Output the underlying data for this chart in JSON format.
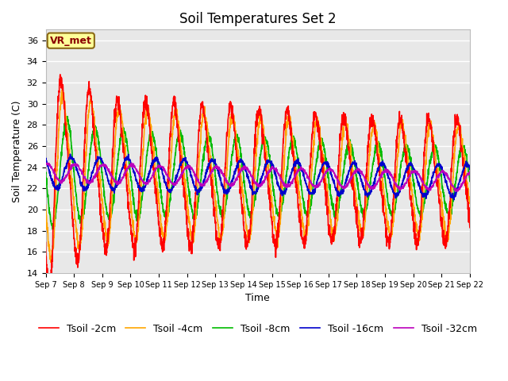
{
  "title": "Soil Temperatures Set 2",
  "xlabel": "Time",
  "ylabel": "Soil Temperature (C)",
  "ylim": [
    14,
    37
  ],
  "yticks": [
    14,
    16,
    18,
    20,
    22,
    24,
    26,
    28,
    30,
    32,
    34,
    36
  ],
  "xtick_labels": [
    "Sep 7",
    "Sep 8",
    "Sep 9",
    "Sep 10",
    "Sep 11",
    "Sep 12",
    "Sep 13",
    "Sep 14",
    "Sep 15",
    "Sep 16",
    "Sep 17",
    "Sep 18",
    "Sep 19",
    "Sep 20",
    "Sep 21",
    "Sep 22"
  ],
  "series": {
    "Tsoil -2cm": {
      "color": "#FF0000",
      "lw": 1.2
    },
    "Tsoil -4cm": {
      "color": "#FFA500",
      "lw": 1.2
    },
    "Tsoil -8cm": {
      "color": "#00BB00",
      "lw": 1.2
    },
    "Tsoil -16cm": {
      "color": "#0000CC",
      "lw": 1.2
    },
    "Tsoil -32cm": {
      "color": "#BB00BB",
      "lw": 1.2
    }
  },
  "annotation_text": "VR_met",
  "background_color": "#E8E8E8",
  "fig_bg": "#FFFFFF",
  "grid_color": "#FFFFFF",
  "legend_fontsize": 9,
  "title_fontsize": 12
}
